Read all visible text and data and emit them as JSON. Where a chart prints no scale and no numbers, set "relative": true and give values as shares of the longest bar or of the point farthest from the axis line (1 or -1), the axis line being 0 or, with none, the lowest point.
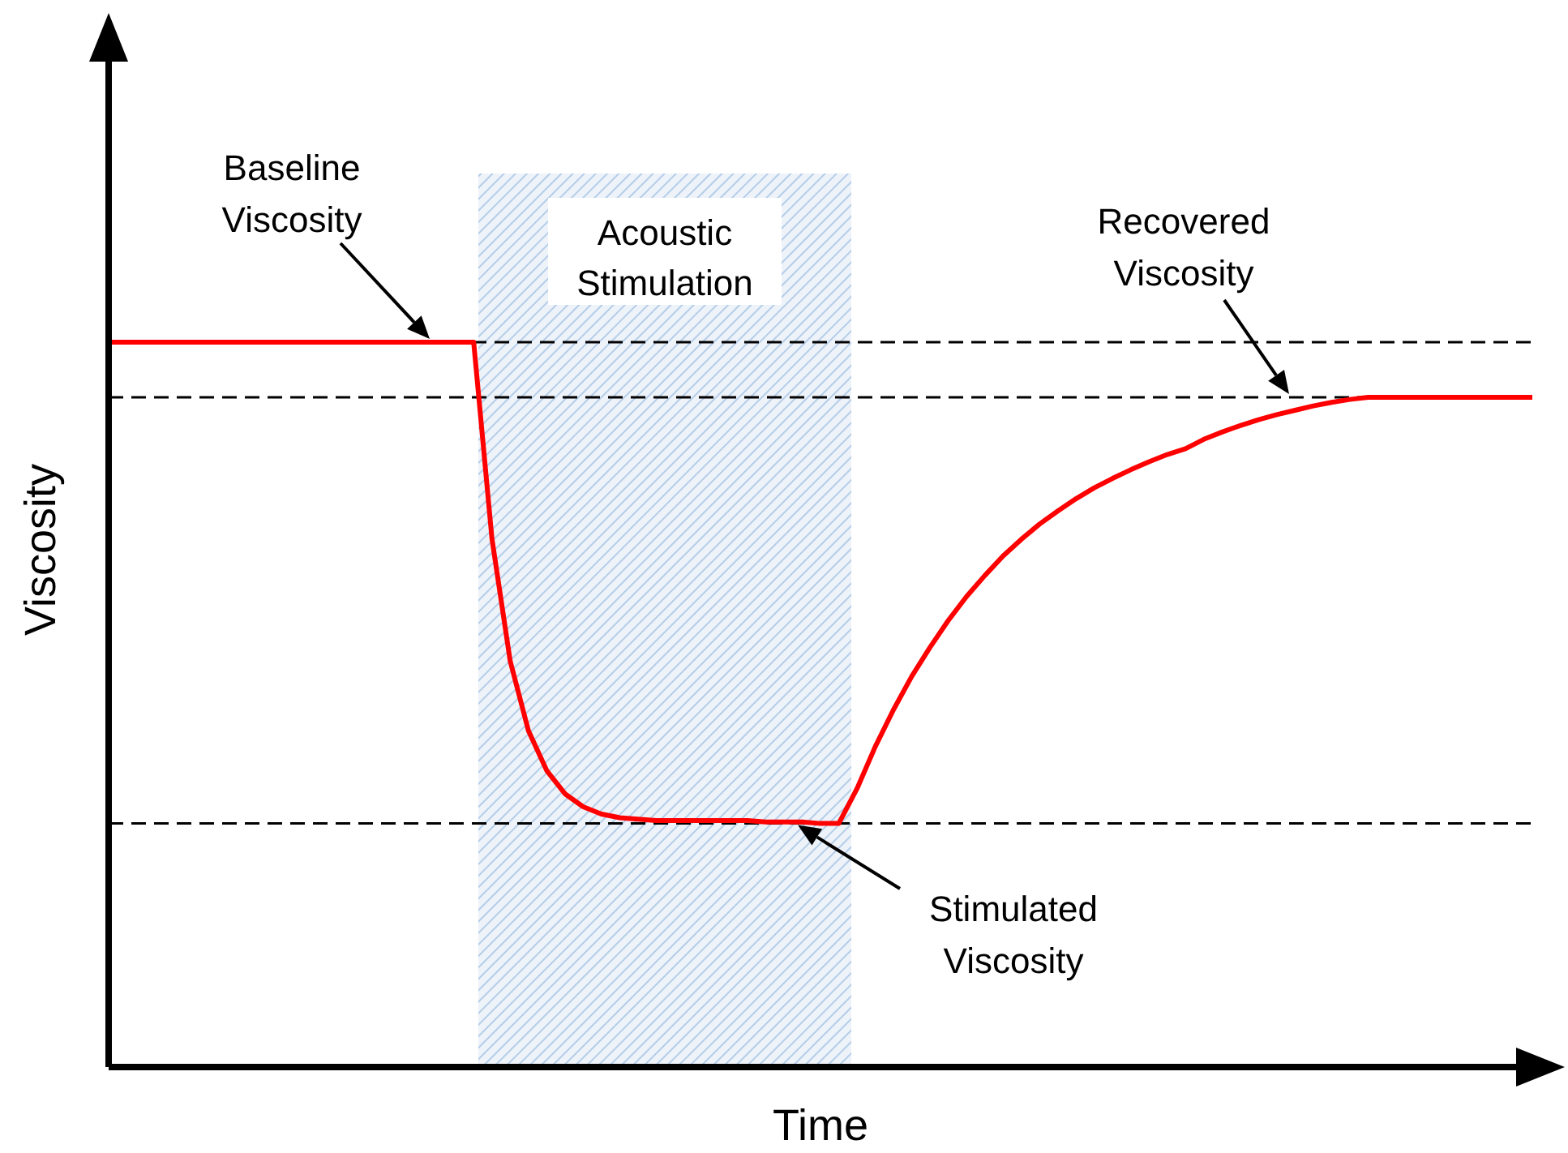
{
  "chart_data": {
    "type": "line",
    "relative": true,
    "xlabel": "Time",
    "ylabel": "Viscosity",
    "categories": [
      null,
      null,
      null,
      null,
      null,
      null,
      null,
      null,
      null,
      null,
      null,
      null,
      null,
      null,
      null,
      null,
      null,
      null,
      null,
      null,
      null,
      null,
      null,
      null,
      null,
      null,
      null,
      null,
      null,
      null,
      null,
      null,
      null,
      null,
      null,
      null,
      null,
      null,
      null,
      null,
      null,
      null,
      null,
      null,
      null,
      null,
      null,
      null,
      null,
      null,
      null,
      null,
      null,
      null,
      null,
      null,
      null,
      null,
      null,
      null,
      null,
      null,
      null,
      null,
      null,
      null,
      null,
      null,
      null,
      null,
      null,
      null,
      null,
      null,
      null,
      null,
      null,
      null,
      null
    ],
    "series": [
      {
        "color": "#ff0000",
        "values": [
          1,
          1,
          1,
          1,
          1,
          1,
          1,
          1,
          1,
          1,
          1,
          1,
          1,
          1,
          1,
          1,
          1,
          1,
          1,
          1,
          1,
          0.729,
          0.56,
          0.464,
          0.409,
          0.377,
          0.359,
          0.349,
          0.344,
          0.342,
          0.34,
          0.34,
          0.34,
          0.34,
          0.34,
          0.34,
          0.338,
          0.338,
          0.338,
          0.336,
          0.336,
          0.384,
          0.442,
          0.493,
          0.539,
          0.579,
          0.616,
          0.649,
          0.678,
          0.705,
          0.728,
          0.749,
          0.767,
          0.784,
          0.799,
          0.812,
          0.824,
          0.835,
          0.845,
          0.853,
          0.866,
          0.876,
          0.885,
          0.893,
          0.9,
          0.906,
          0.912,
          0.917,
          0.921,
          0.924,
          0.924,
          0.924,
          0.924,
          0.924,
          0.924,
          0.924,
          0.924,
          0.924,
          0.924
        ]
      }
    ],
    "ref_lines": [
      {
        "axis": "y",
        "value": 1,
        "label": "Baseline Viscosity",
        "line_style": "dashed"
      },
      {
        "axis": "y",
        "value": 0.924,
        "label": "Recovered Viscosity",
        "line_style": "dashed"
      },
      {
        "axis": "y",
        "value": 0.336,
        "label": "Stimulated Viscosity",
        "line_style": "dashed"
      }
    ],
    "annotations": [
      "Acoustic Stimulation"
    ],
    "marker": "none",
    "line_style": "solid"
  }
}
